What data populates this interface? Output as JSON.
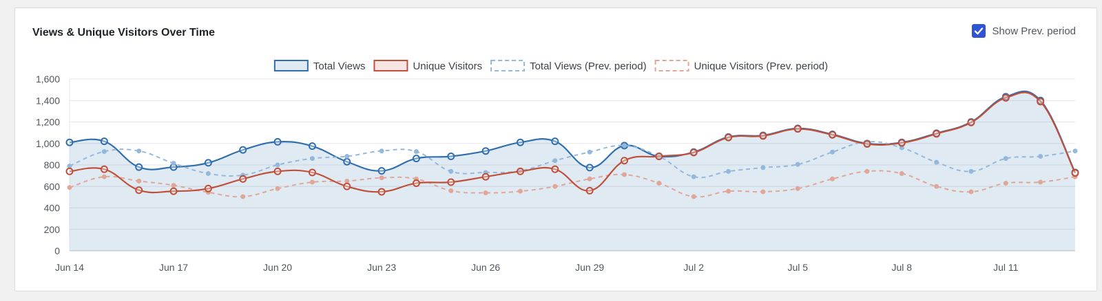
{
  "card": {
    "title": "Views & Unique Visitors Over Time",
    "toggle_label": "Show Prev. period",
    "toggle_checked": true
  },
  "colors": {
    "total_views": "#2f6fae",
    "total_views_fill": "rgba(47,111,174,0.15)",
    "unique_visitors": "#c0503a",
    "prev_total_views": "#94b8db",
    "prev_unique_visitors": "#e0a798",
    "checkbox": "#2f55d4"
  },
  "chart_data": {
    "type": "line",
    "title": "Views & Unique Visitors Over Time",
    "xlabel": "",
    "ylabel": "",
    "ylim": [
      0,
      1600
    ],
    "y_ticks": [
      "0",
      "200",
      "400",
      "600",
      "800",
      "1,000",
      "1,200",
      "1,400",
      "1,600"
    ],
    "x_tick_labels": [
      "Jun 14",
      "Jun 17",
      "Jun 20",
      "Jun 23",
      "Jun 26",
      "Jun 29",
      "Jul 2",
      "Jul 5",
      "Jul 8",
      "Jul 11"
    ],
    "x": [
      "Jun 14",
      "Jun 15",
      "Jun 16",
      "Jun 17",
      "Jun 18",
      "Jun 19",
      "Jun 20",
      "Jun 21",
      "Jun 22",
      "Jun 23",
      "Jun 24",
      "Jun 25",
      "Jun 26",
      "Jun 27",
      "Jun 28",
      "Jun 29",
      "Jun 30",
      "Jul 1",
      "Jul 2",
      "Jul 3",
      "Jul 4",
      "Jul 5",
      "Jul 6",
      "Jul 7",
      "Jul 8",
      "Jul 9",
      "Jul 10",
      "Jul 11",
      "Jul 12",
      "Jul 13"
    ],
    "grid": true,
    "legend_position": "top",
    "series": [
      {
        "name": "Total Views",
        "style": "solid",
        "fill": true,
        "values": [
          1010,
          1020,
          780,
          780,
          820,
          940,
          1015,
          975,
          830,
          745,
          860,
          880,
          930,
          1010,
          1020,
          775,
          980,
          880,
          920,
          1060,
          1075,
          1140,
          1085,
          1000,
          1010,
          1095,
          1200,
          1435,
          1400,
          730
        ]
      },
      {
        "name": "Unique Visitors",
        "style": "solid",
        "fill": false,
        "values": [
          740,
          760,
          565,
          555,
          580,
          670,
          740,
          730,
          600,
          550,
          630,
          640,
          690,
          740,
          760,
          560,
          840,
          880,
          915,
          1055,
          1070,
          1135,
          1080,
          995,
          1005,
          1090,
          1195,
          1425,
          1390,
          725
        ]
      },
      {
        "name": "Total Views (Prev. period)",
        "style": "dashed",
        "fill": false,
        "values": [
          790,
          925,
          930,
          815,
          720,
          705,
          800,
          860,
          880,
          930,
          925,
          740,
          730,
          745,
          840,
          920,
          980,
          880,
          690,
          740,
          775,
          805,
          920,
          1015,
          960,
          825,
          740,
          860,
          880,
          930
        ]
      },
      {
        "name": "Unique Visitors (Prev. period)",
        "style": "dashed",
        "fill": false,
        "values": [
          590,
          690,
          650,
          610,
          545,
          505,
          580,
          640,
          650,
          680,
          670,
          560,
          540,
          555,
          600,
          670,
          710,
          630,
          505,
          555,
          550,
          580,
          670,
          740,
          720,
          600,
          550,
          630,
          640,
          690
        ]
      }
    ]
  }
}
